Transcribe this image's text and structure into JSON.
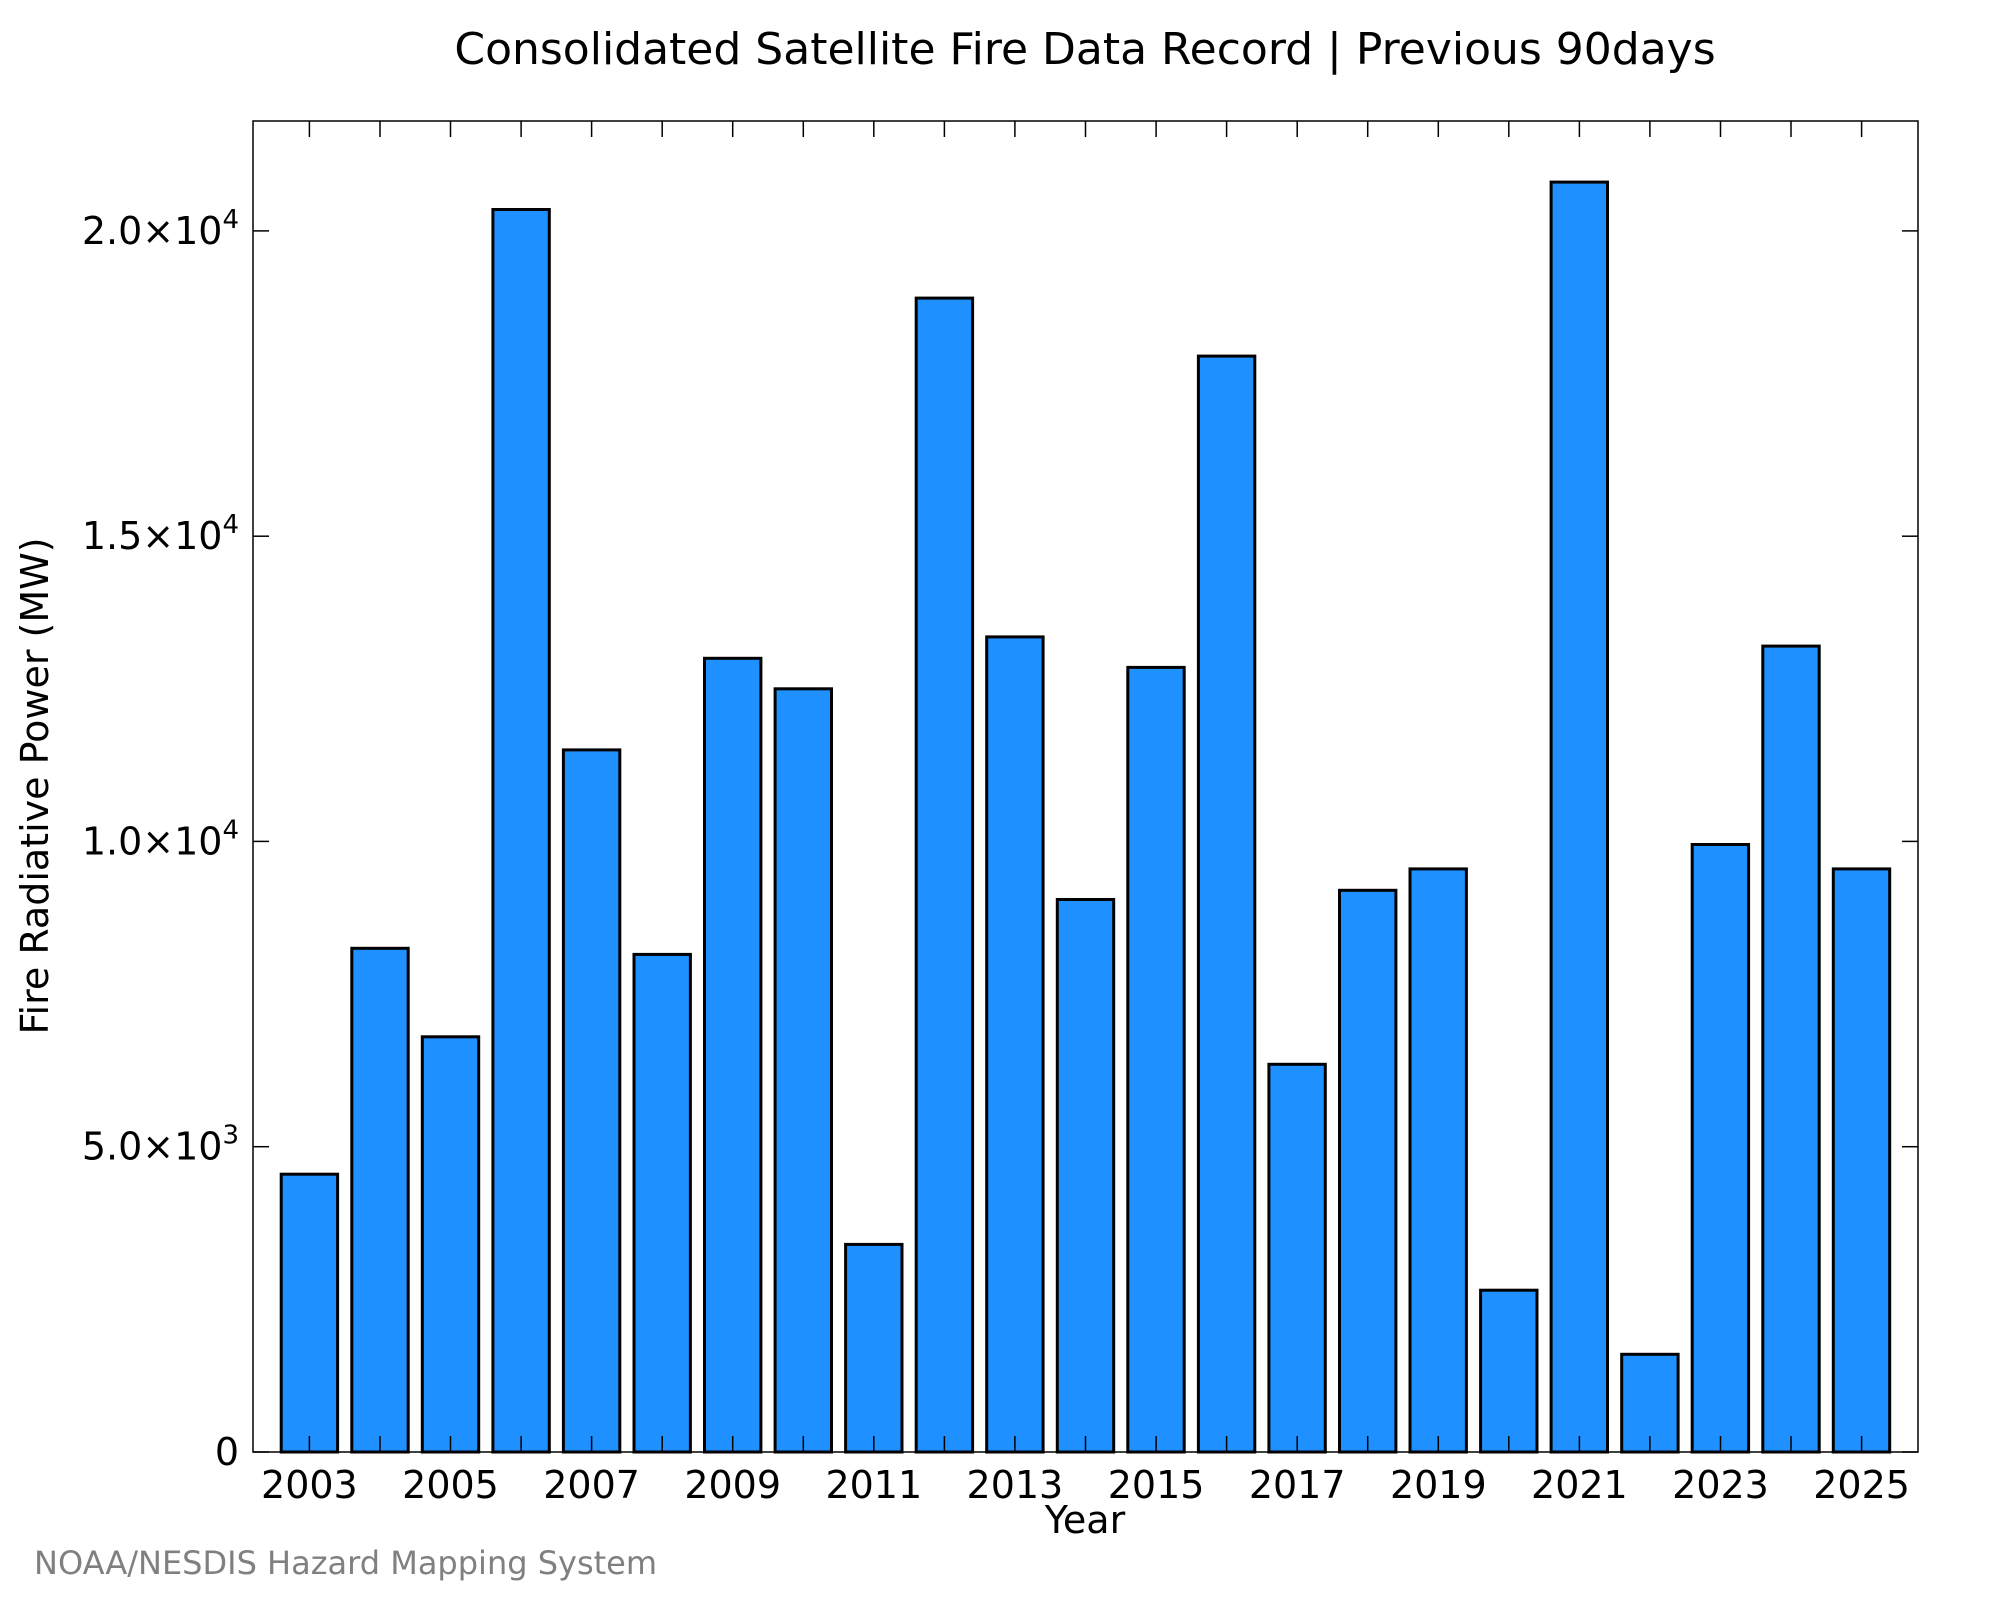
{
  "chart_data": {
    "type": "bar",
    "title": "Consolidated Satellite Fire Data Record | Previous 90days",
    "xlabel": "Year",
    "ylabel": "Fire Radiative Power (MW)",
    "categories": [
      "2003",
      "2004",
      "2005",
      "2006",
      "2007",
      "2008",
      "2009",
      "2010",
      "2011",
      "2012",
      "2013",
      "2014",
      "2015",
      "2016",
      "2017",
      "2018",
      "2019",
      "2020",
      "2021",
      "2022",
      "2023",
      "2024",
      "2025"
    ],
    "values": [
      4550,
      8250,
      6800,
      20350,
      11500,
      8150,
      13000,
      12500,
      3400,
      18900,
      13350,
      9050,
      12850,
      17950,
      6350,
      9200,
      9550,
      2650,
      20800,
      1600,
      9950,
      13200,
      9550
    ],
    "x_tick_labels": [
      "2003",
      "2005",
      "2007",
      "2009",
      "2011",
      "2013",
      "2015",
      "2017",
      "2019",
      "2021",
      "2023",
      "2025"
    ],
    "y_ticks": [
      0,
      5000,
      10000,
      15000,
      20000
    ],
    "y_tick_labels": [
      {
        "mantissa": "0",
        "exponent": ""
      },
      {
        "mantissa": "5.0×10",
        "exponent": "3"
      },
      {
        "mantissa": "1.0×10",
        "exponent": "4"
      },
      {
        "mantissa": "1.5×10",
        "exponent": "4"
      },
      {
        "mantissa": "2.0×10",
        "exponent": "4"
      }
    ],
    "ylim": [
      0,
      21800
    ],
    "bar_color": "#1e90ff",
    "bar_edge_color": "#000000",
    "grid": false
  },
  "credit": "NOAA/NESDIS Hazard Mapping System"
}
